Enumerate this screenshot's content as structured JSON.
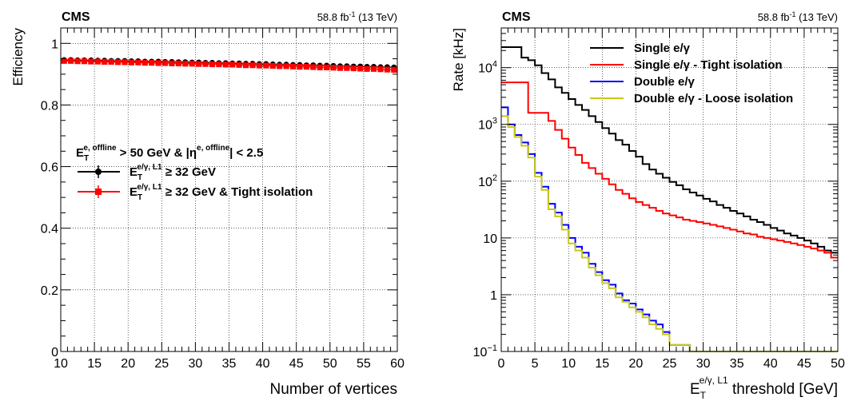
{
  "chart_data": [
    {
      "type": "line",
      "experiment": "CMS",
      "lumi_text": "58.8 fb",
      "lumi_exp": "-1",
      "energy_text": " (13 TeV)",
      "xlabel": "Number of vertices",
      "ylabel": "Efficiency",
      "xlim": [
        10,
        60
      ],
      "ylim": [
        0,
        1.05
      ],
      "xticks": [
        "10",
        "15",
        "20",
        "25",
        "30",
        "35",
        "40",
        "45",
        "50",
        "55",
        "60"
      ],
      "yticks": [
        "0",
        "0.2",
        "0.4",
        "0.6",
        "0.8",
        "1"
      ],
      "grid": true,
      "legend_placement": "center-left",
      "legend_header": {
        "et": "E",
        "sub_t": "T",
        "sup_offline": "e, offline",
        "mid": " > 50 GeV & |",
        "eta": "η",
        "sup_eta": "e, offline",
        "end": "| < 2.5"
      },
      "x": [
        10,
        11,
        12,
        13,
        14,
        15,
        16,
        17,
        18,
        19,
        20,
        21,
        22,
        23,
        24,
        25,
        26,
        27,
        28,
        29,
        30,
        31,
        32,
        33,
        34,
        35,
        36,
        37,
        38,
        39,
        40,
        41,
        42,
        43,
        44,
        45,
        46,
        47,
        48,
        49,
        50,
        51,
        52,
        53,
        54,
        55,
        56,
        57,
        58,
        59
      ],
      "series": [
        {
          "name_main": "E",
          "name_sub": "T",
          "name_sup": "e/γ, L1",
          "name_tail": " ≥ 32 GeV",
          "color": "#000000",
          "values": [
            0.946,
            0.946,
            0.945,
            0.945,
            0.945,
            0.944,
            0.944,
            0.943,
            0.943,
            0.943,
            0.942,
            0.942,
            0.941,
            0.941,
            0.941,
            0.94,
            0.94,
            0.939,
            0.939,
            0.938,
            0.938,
            0.937,
            0.937,
            0.936,
            0.936,
            0.935,
            0.935,
            0.934,
            0.934,
            0.933,
            0.933,
            0.932,
            0.931,
            0.931,
            0.93,
            0.93,
            0.929,
            0.929,
            0.928,
            0.928,
            0.927,
            0.926,
            0.926,
            0.925,
            0.925,
            0.924,
            0.924,
            0.923,
            0.923,
            0.922
          ]
        },
        {
          "name_main": "E",
          "name_sub": "T",
          "name_sup": "e/γ, L1",
          "name_tail": " ≥ 32 GeV & Tight isolation",
          "color": "#ff0000",
          "values": [
            0.943,
            0.943,
            0.942,
            0.942,
            0.941,
            0.941,
            0.94,
            0.94,
            0.939,
            0.939,
            0.938,
            0.938,
            0.937,
            0.937,
            0.936,
            0.936,
            0.935,
            0.935,
            0.934,
            0.934,
            0.933,
            0.933,
            0.932,
            0.932,
            0.931,
            0.931,
            0.93,
            0.929,
            0.929,
            0.928,
            0.928,
            0.927,
            0.926,
            0.926,
            0.925,
            0.924,
            0.924,
            0.923,
            0.922,
            0.922,
            0.921,
            0.92,
            0.92,
            0.919,
            0.918,
            0.917,
            0.917,
            0.916,
            0.915,
            0.914
          ]
        }
      ]
    },
    {
      "type": "line",
      "experiment": "CMS",
      "lumi_text": "58.8 fb",
      "lumi_exp": "-1",
      "energy_text": " (13 TeV)",
      "ylabel": "Rate [kHz]",
      "xlabel_main": "E",
      "xlabel_sub": "T",
      "xlabel_sup": "e/γ, L1",
      "xlabel_tail": " threshold [GeV]",
      "xlim": [
        0,
        50
      ],
      "ylim": [
        0.1,
        50000
      ],
      "log_y": true,
      "xticks": [
        "0",
        "5",
        "10",
        "15",
        "20",
        "25",
        "30",
        "35",
        "40",
        "45",
        "50"
      ],
      "yticks": [
        {
          "value": 0.1,
          "base": "10",
          "exp": "−1"
        },
        {
          "value": 1,
          "base": "1",
          "exp": ""
        },
        {
          "value": 10,
          "base": "10",
          "exp": ""
        },
        {
          "value": 100,
          "base": "10",
          "exp": "2"
        },
        {
          "value": 1000,
          "base": "10",
          "exp": "3"
        },
        {
          "value": 10000,
          "base": "10",
          "exp": "4"
        }
      ],
      "grid": true,
      "legend_placement": "top-right",
      "bin_edges": [
        0,
        1,
        2,
        3,
        4,
        5,
        6,
        7,
        8,
        9,
        10,
        11,
        12,
        13,
        14,
        15,
        16,
        17,
        18,
        19,
        20,
        21,
        22,
        23,
        24,
        25,
        26,
        27,
        28,
        29,
        30,
        31,
        32,
        33,
        34,
        35,
        36,
        37,
        38,
        39,
        40,
        41,
        42,
        43,
        44,
        45,
        46,
        47,
        48,
        49,
        50
      ],
      "series": [
        {
          "name": "Single e/γ",
          "color": "#000000",
          "values": [
            23000,
            23000,
            23000,
            15000,
            13500,
            11000,
            8000,
            6200,
            4500,
            3600,
            2800,
            2200,
            1800,
            1400,
            1100,
            860,
            690,
            530,
            440,
            340,
            270,
            200,
            160,
            135,
            115,
            97,
            85,
            72,
            63,
            56,
            49,
            44,
            38,
            34,
            30,
            27,
            24,
            21,
            19,
            17,
            15,
            13.5,
            12,
            11,
            10,
            9,
            8,
            7,
            6,
            5.5
          ]
        },
        {
          "name": "Single e/γ - Tight isolation",
          "color": "#ff0000",
          "values": [
            5500,
            5500,
            5500,
            5500,
            1600,
            1600,
            1600,
            1150,
            800,
            560,
            390,
            290,
            210,
            170,
            135,
            110,
            88,
            70,
            60,
            50,
            43,
            38,
            34,
            30,
            27,
            25,
            23,
            21,
            20,
            19,
            18,
            17,
            16,
            15,
            14,
            13,
            12,
            11.5,
            10.5,
            10,
            9.5,
            9,
            8.5,
            8,
            7.5,
            7,
            6.5,
            6,
            5.5,
            4.5
          ]
        },
        {
          "name": "Double e/γ",
          "color": "#0000ff",
          "values": [
            2000,
            1000,
            650,
            480,
            300,
            140,
            80,
            40,
            28,
            17,
            10,
            7,
            5.5,
            3.5,
            2.5,
            1.8,
            1.5,
            1.05,
            0.8,
            0.7,
            0.55,
            0.45,
            0.35,
            0.3,
            0.22,
            0.13,
            0.13,
            0.13,
            0.09,
            0.09,
            0.09,
            0.09,
            0.09,
            0.09,
            0.09,
            0.09,
            0.09,
            0.09,
            0.09,
            0.09,
            0.09,
            0.09,
            0.09,
            0.09,
            0.09,
            0.09,
            0.09,
            0.09,
            0.09,
            0.09
          ]
        },
        {
          "name": "Double e/γ - Loose isolation",
          "color": "#c8c81a",
          "values": [
            1400,
            900,
            600,
            420,
            260,
            120,
            70,
            32,
            24,
            14,
            8,
            6,
            4.5,
            3,
            2.2,
            1.6,
            1.3,
            0.9,
            0.75,
            0.6,
            0.5,
            0.4,
            0.3,
            0.25,
            0.2,
            0.13,
            0.13,
            0.13,
            0.09,
            0.09,
            0.09,
            0.09,
            0.09,
            0.09,
            0.09,
            0.09,
            0.09,
            0.09,
            0.09,
            0.09,
            0.09,
            0.09,
            0.09,
            0.09,
            0.09,
            0.09,
            0.09,
            0.09,
            0.09,
            0.09
          ]
        }
      ]
    }
  ]
}
